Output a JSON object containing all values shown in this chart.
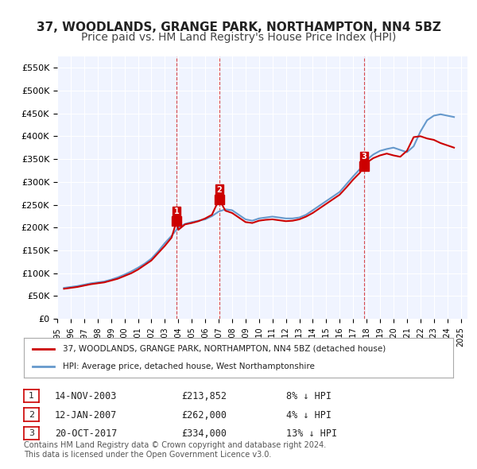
{
  "title": "37, WOODLANDS, GRANGE PARK, NORTHAMPTON, NN4 5BZ",
  "subtitle": "Price paid vs. HM Land Registry's House Price Index (HPI)",
  "ylabel": "",
  "ylim": [
    0,
    575000
  ],
  "yticks": [
    0,
    50000,
    100000,
    150000,
    200000,
    250000,
    300000,
    350000,
    400000,
    450000,
    500000,
    550000
  ],
  "ytick_labels": [
    "£0",
    "£50K",
    "£100K",
    "£150K",
    "£200K",
    "£250K",
    "£300K",
    "£350K",
    "£400K",
    "£450K",
    "£500K",
    "£550K"
  ],
  "background_color": "#ffffff",
  "plot_bg_color": "#f0f4ff",
  "grid_color": "#ffffff",
  "title_fontsize": 11,
  "subtitle_fontsize": 10,
  "purchases": [
    {
      "label": "1",
      "date_num": 2003.87,
      "price": 213852,
      "color": "#cc0000"
    },
    {
      "label": "2",
      "date_num": 2007.04,
      "price": 262000,
      "color": "#cc0000"
    },
    {
      "label": "3",
      "date_num": 2017.8,
      "price": 334000,
      "color": "#cc0000"
    }
  ],
  "purchase_vlines": [
    2003.87,
    2007.04,
    2017.8
  ],
  "hpi_line_color": "#6699cc",
  "price_line_color": "#cc0000",
  "legend_entries": [
    {
      "label": "37, WOODLANDS, GRANGE PARK, NORTHAMPTON, NN4 5BZ (detached house)",
      "color": "#cc0000"
    },
    {
      "label": "HPI: Average price, detached house, West Northamptonshire",
      "color": "#6699cc"
    }
  ],
  "table_rows": [
    {
      "num": "1",
      "date": "14-NOV-2003",
      "price": "£213,852",
      "hpi": "8% ↓ HPI"
    },
    {
      "num": "2",
      "date": "12-JAN-2007",
      "price": "£262,000",
      "hpi": "4% ↓ HPI"
    },
    {
      "num": "3",
      "date": "20-OCT-2017",
      "price": "£334,000",
      "hpi": "13% ↓ HPI"
    }
  ],
  "footer": "Contains HM Land Registry data © Crown copyright and database right 2024.\nThis data is licensed under the Open Government Licence v3.0.",
  "hpi_data": {
    "years": [
      1995.5,
      1996.0,
      1996.5,
      1997.0,
      1997.5,
      1998.0,
      1998.5,
      1999.0,
      1999.5,
      2000.0,
      2000.5,
      2001.0,
      2001.5,
      2002.0,
      2002.5,
      2003.0,
      2003.5,
      2004.0,
      2004.5,
      2005.0,
      2005.5,
      2006.0,
      2006.5,
      2007.0,
      2007.5,
      2008.0,
      2008.5,
      2009.0,
      2009.5,
      2010.0,
      2010.5,
      2011.0,
      2011.5,
      2012.0,
      2012.5,
      2013.0,
      2013.5,
      2014.0,
      2014.5,
      2015.0,
      2015.5,
      2016.0,
      2016.5,
      2017.0,
      2017.5,
      2018.0,
      2018.5,
      2019.0,
      2019.5,
      2020.0,
      2020.5,
      2021.0,
      2021.5,
      2022.0,
      2022.5,
      2023.0,
      2023.5,
      2024.0,
      2024.5
    ],
    "values": [
      68000,
      70000,
      72000,
      75000,
      78000,
      80000,
      82000,
      86000,
      91000,
      97000,
      104000,
      112000,
      121000,
      132000,
      148000,
      166000,
      182000,
      200000,
      208000,
      212000,
      215000,
      218000,
      225000,
      235000,
      240000,
      238000,
      228000,
      218000,
      215000,
      220000,
      222000,
      224000,
      222000,
      220000,
      220000,
      222000,
      228000,
      238000,
      248000,
      258000,
      268000,
      278000,
      295000,
      312000,
      328000,
      348000,
      360000,
      368000,
      372000,
      375000,
      370000,
      365000,
      378000,
      410000,
      435000,
      445000,
      448000,
      445000,
      442000
    ]
  },
  "price_data": {
    "years": [
      1995.5,
      1996.0,
      1996.5,
      1997.0,
      1997.5,
      1998.0,
      1998.5,
      1999.0,
      1999.5,
      2000.0,
      2000.5,
      2001.0,
      2001.5,
      2002.0,
      2002.5,
      2003.0,
      2003.5,
      2003.87,
      2004.0,
      2004.5,
      2005.0,
      2005.5,
      2006.0,
      2006.5,
      2007.04,
      2007.5,
      2008.0,
      2008.5,
      2009.0,
      2009.5,
      2010.0,
      2010.5,
      2011.0,
      2011.5,
      2012.0,
      2012.5,
      2013.0,
      2013.5,
      2014.0,
      2014.5,
      2015.0,
      2015.5,
      2016.0,
      2016.5,
      2017.0,
      2017.5,
      2017.8,
      2018.0,
      2018.5,
      2019.0,
      2019.5,
      2020.0,
      2020.5,
      2021.0,
      2021.5,
      2022.0,
      2022.5,
      2023.0,
      2023.5,
      2024.0,
      2024.5
    ],
    "values": [
      66000,
      68000,
      70000,
      73000,
      76000,
      78000,
      80000,
      84000,
      88000,
      94000,
      100000,
      108000,
      118000,
      128000,
      144000,
      160000,
      178000,
      213852,
      195000,
      207000,
      210000,
      214000,
      220000,
      228000,
      262000,
      237000,
      232000,
      222000,
      212000,
      210000,
      215000,
      217000,
      218000,
      216000,
      214000,
      215000,
      218000,
      224000,
      232000,
      242000,
      252000,
      262000,
      272000,
      288000,
      305000,
      320000,
      334000,
      342000,
      352000,
      358000,
      362000,
      358000,
      355000,
      368000,
      398000,
      400000,
      395000,
      392000,
      385000,
      380000,
      375000
    ]
  },
  "xtick_years": [
    1995,
    1996,
    1997,
    1998,
    1999,
    2000,
    2001,
    2002,
    2003,
    2004,
    2005,
    2006,
    2007,
    2008,
    2009,
    2010,
    2011,
    2012,
    2013,
    2014,
    2015,
    2016,
    2017,
    2018,
    2019,
    2020,
    2021,
    2022,
    2023,
    2024,
    2025
  ]
}
